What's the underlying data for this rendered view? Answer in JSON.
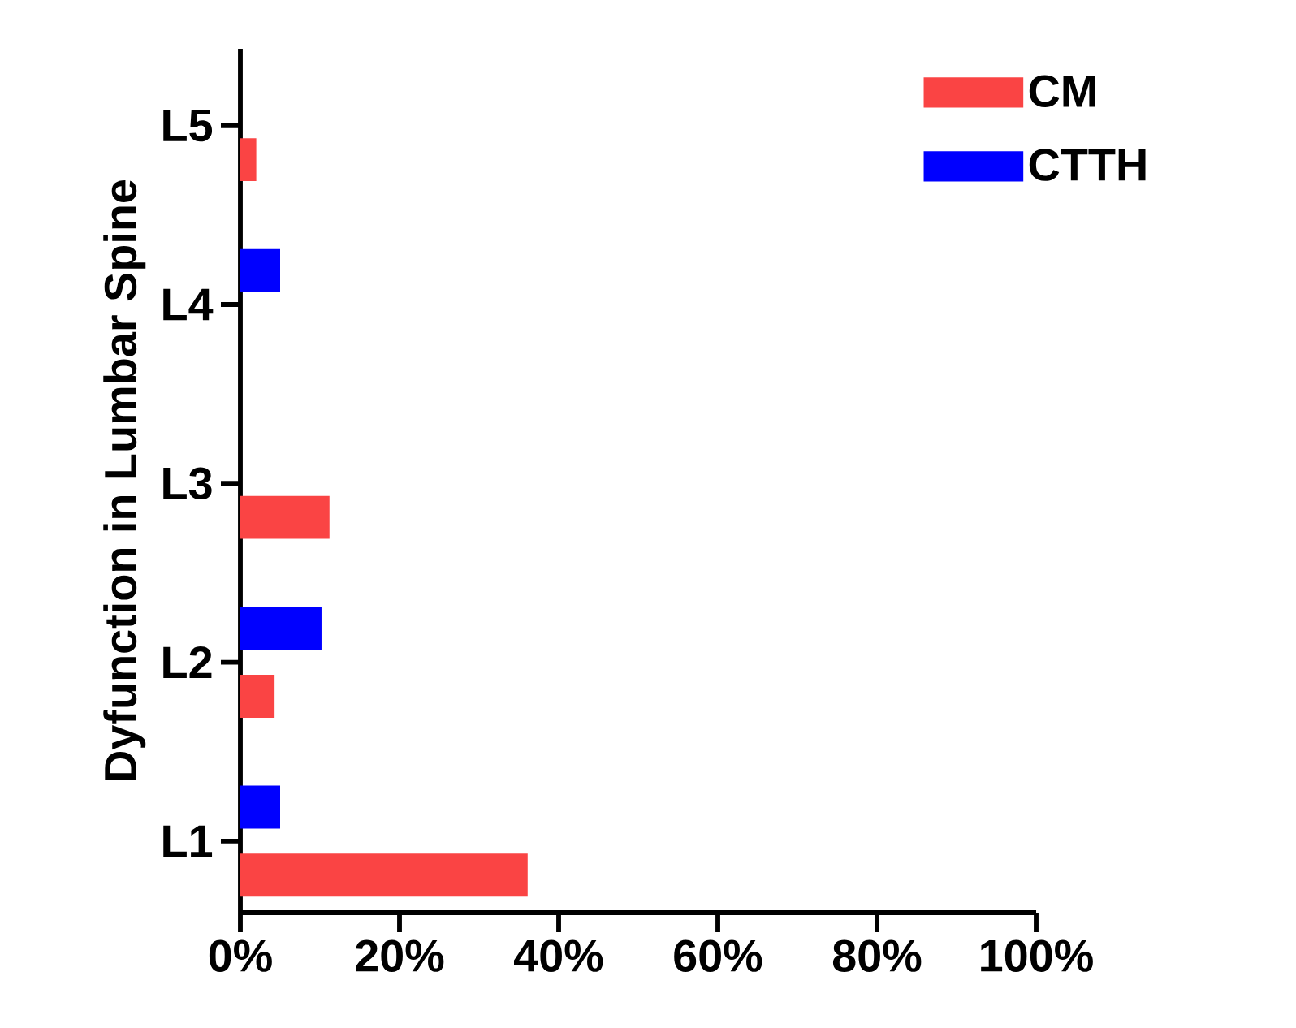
{
  "chart_data": {
    "type": "bar",
    "orientation": "horizontal",
    "ylabel": "Dyfunction in Lumbar Spine",
    "categories": [
      "L5",
      "L4",
      "L3",
      "L2",
      "L1"
    ],
    "series": [
      {
        "name": "CM",
        "color": "#fa4444",
        "values": [
          2.0,
          0,
          11.2,
          4.3,
          36.1
        ]
      },
      {
        "name": "CTTH",
        "color": "#0000ff",
        "values": [
          0,
          5.0,
          0,
          10.2,
          5.0
        ]
      }
    ],
    "xlim": [
      0,
      100
    ],
    "xticks": [
      {
        "value": 0,
        "label": "0%"
      },
      {
        "value": 20,
        "label": "20%"
      },
      {
        "value": 40,
        "label": "40%"
      },
      {
        "value": 60,
        "label": "60%"
      },
      {
        "value": 80,
        "label": "80%"
      },
      {
        "value": 100,
        "label": "100%"
      }
    ],
    "legend": "top right",
    "grid": false
  }
}
